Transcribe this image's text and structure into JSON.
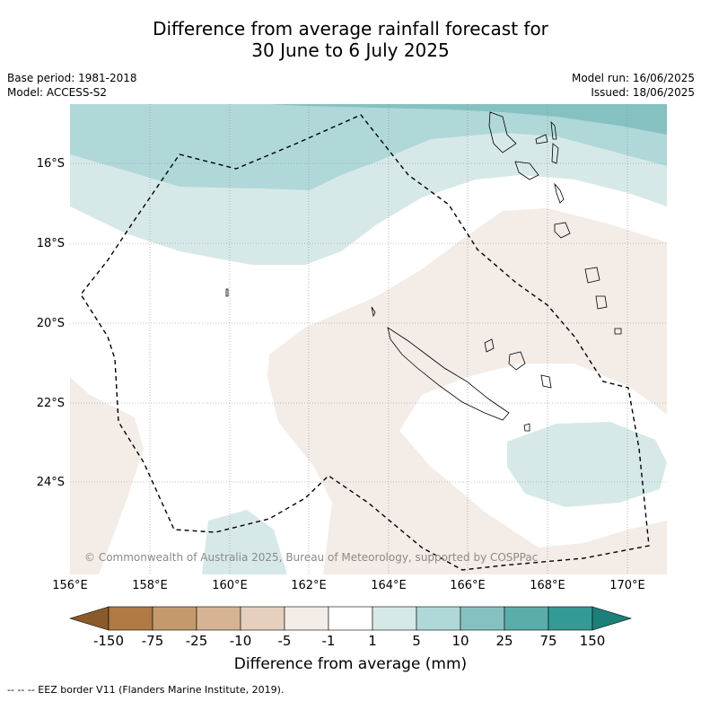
{
  "title_line1": "Difference from average rainfall forecast for",
  "title_line2": "30 June to 6 July 2025",
  "base_period": "Base period: 1981-2018",
  "model": "Model: ACCESS-S2",
  "model_run": "Model run: 16/06/2025",
  "issued": "Issued: 18/06/2025",
  "credit": "© Commonwealth of Australia 2025, Bureau of Meteorology, supported by COSPPac",
  "lat_labels": [
    "16°S",
    "18°S",
    "20°S",
    "22°S",
    "24°S"
  ],
  "lon_labels": [
    "156°E",
    "158°E",
    "160°E",
    "162°E",
    "164°E",
    "166°E",
    "168°E",
    "170°E"
  ],
  "colorbar": {
    "ticks": [
      "-150",
      "-75",
      "-25",
      "-10",
      "-5",
      "-1",
      "1",
      "5",
      "10",
      "25",
      "75",
      "150"
    ],
    "colors": [
      "#8b5a2b",
      "#b07a45",
      "#c49a6c",
      "#d5b393",
      "#e6d0bd",
      "#f4ece6",
      "#ffffff",
      "#d6e9e8",
      "#b0d8d8",
      "#86c1c1",
      "#5aadab",
      "#349a96",
      "#1c7f7a"
    ],
    "label": "Difference from average (mm)"
  },
  "footer": "--  --  -- EEZ border V11 (Flanders Marine Institute, 2019)."
}
